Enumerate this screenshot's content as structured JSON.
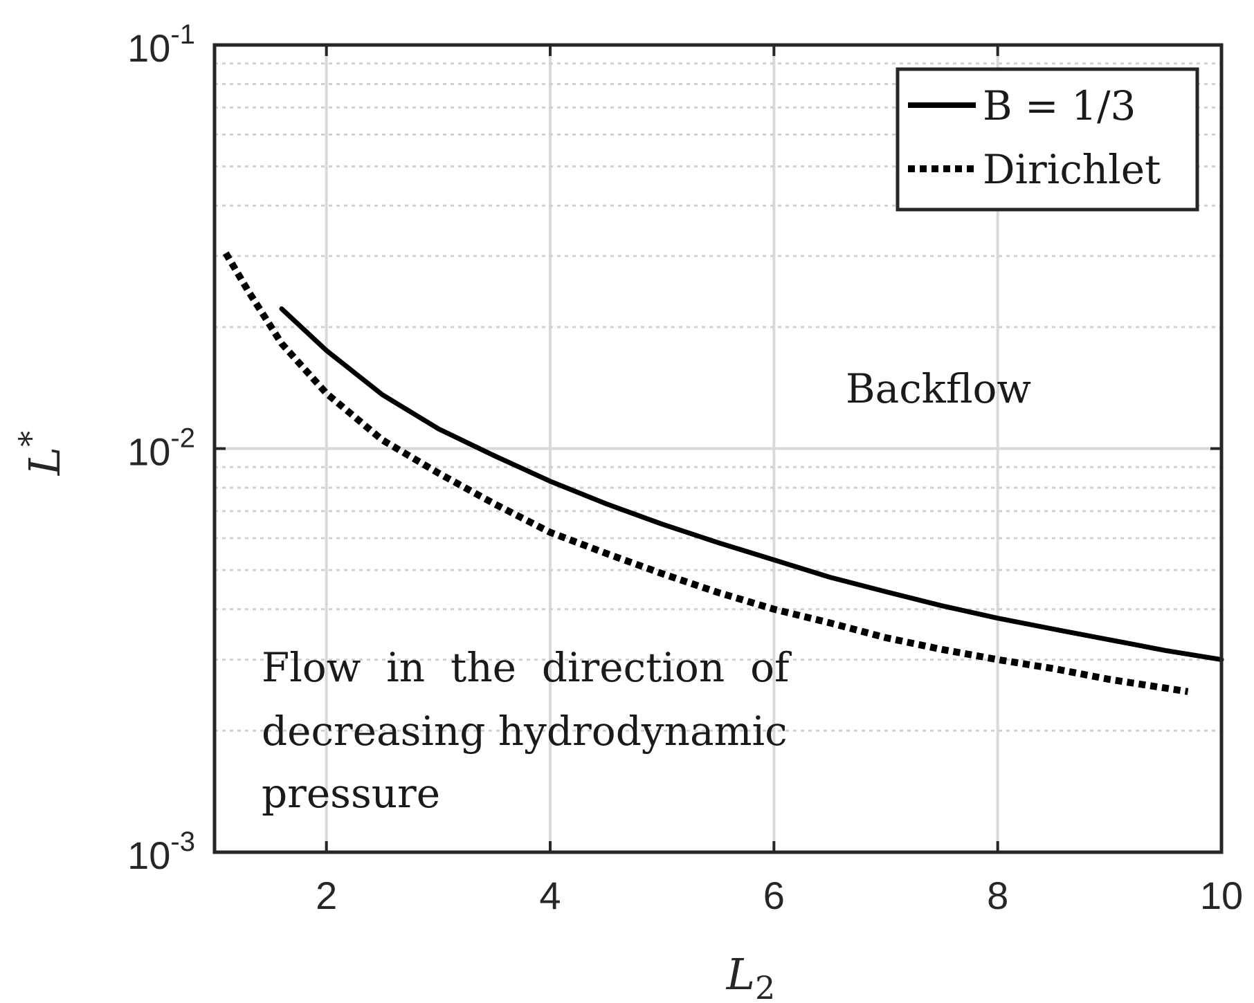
{
  "chart_data": {
    "type": "line",
    "title": "",
    "xlabel": "L",
    "xlabel_subscript": "2",
    "ylabel": "L",
    "ylabel_superscript": "*",
    "xlim": [
      1,
      10
    ],
    "ylim": [
      0.001,
      0.1
    ],
    "yscale": "log",
    "grid": true,
    "legend_position": "top-right",
    "x_ticks": [
      {
        "value": 2,
        "label": "2"
      },
      {
        "value": 4,
        "label": "4"
      },
      {
        "value": 6,
        "label": "6"
      },
      {
        "value": 8,
        "label": "8"
      },
      {
        "value": 10,
        "label": "10"
      }
    ],
    "y_ticks": [
      {
        "value": 0.1,
        "base": "10",
        "exp": "-1"
      },
      {
        "value": 0.01,
        "base": "10",
        "exp": "-2"
      },
      {
        "value": 0.001,
        "base": "10",
        "exp": "-3"
      }
    ],
    "series": [
      {
        "name": "B = 1/3",
        "style": "solid",
        "color": "#000000",
        "x": [
          1.6,
          2,
          2.5,
          3,
          3.5,
          4,
          4.5,
          5,
          5.5,
          6,
          6.5,
          7,
          7.5,
          8,
          8.5,
          9,
          9.5,
          10
        ],
        "y": [
          0.0222,
          0.0175,
          0.0136,
          0.0112,
          0.0096,
          0.0083,
          0.0073,
          0.0065,
          0.00585,
          0.0053,
          0.0048,
          0.00442,
          0.00408,
          0.0038,
          0.00357,
          0.00336,
          0.00316,
          0.003
        ]
      },
      {
        "name": "Dirichlet",
        "style": "dotted",
        "color": "#000000",
        "x": [
          1.1,
          1.3,
          1.6,
          2,
          2.5,
          3,
          3.5,
          4,
          4.5,
          5,
          5.5,
          6,
          6.5,
          7,
          7.5,
          8,
          8.5,
          9,
          9.7
        ],
        "y": [
          0.0305,
          0.0246,
          0.0182,
          0.0137,
          0.0105,
          0.0087,
          0.0073,
          0.0062,
          0.0055,
          0.0049,
          0.0044,
          0.004,
          0.0037,
          0.0034,
          0.00318,
          0.003,
          0.00285,
          0.00268,
          0.0025
        ]
      }
    ],
    "annotations": [
      {
        "id": "backflow",
        "lines": [
          "Backflow"
        ]
      },
      {
        "id": "flow",
        "lines": [
          "Flow  in  the  direction  of",
          "decreasing hydrodynamic",
          "pressure"
        ]
      }
    ]
  }
}
